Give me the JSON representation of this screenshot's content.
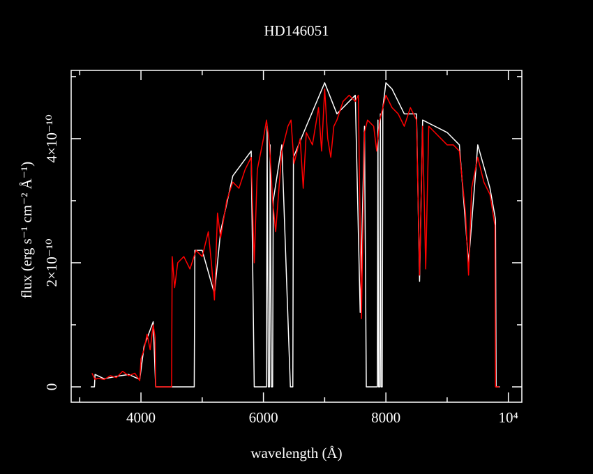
{
  "chart_data": {
    "type": "line",
    "title": "HD146051",
    "x_label": "wavelength (Å)",
    "y_label": "flux (erg s⁻¹ cm⁻² Å⁻¹)",
    "xlim": [
      2860,
      10220
    ],
    "ylim": [
      -2.47e-11,
      5.1e-10
    ],
    "xticks": [
      4000,
      6000,
      8000,
      {
        "value": 10000,
        "label": "10⁴"
      }
    ],
    "xminorticks": [
      3000,
      5000,
      7000,
      9000
    ],
    "yticks": [
      0,
      {
        "value": 2e-10,
        "label": "2×10⁻¹⁰"
      },
      {
        "value": 4e-10,
        "label": "4×10⁻¹⁰"
      }
    ],
    "yminorticks": [
      1e-10,
      3e-10,
      5e-10
    ],
    "series": [
      {
        "color": "#ffffff",
        "x": [
          3180,
          3240,
          3250,
          3400,
          3600,
          3800,
          3980,
          4050,
          4200,
          4240,
          4870,
          4880,
          5000,
          5200,
          5300,
          5500,
          5800,
          5850,
          6050,
          6060,
          6080,
          6100,
          6110,
          6130,
          6150,
          6160,
          6300,
          6440,
          6480,
          6490,
          6700,
          7000,
          7200,
          7500,
          7580,
          7650,
          7680,
          7860,
          7870,
          7880,
          7900,
          7910,
          7920,
          7940,
          7950,
          8000,
          8100,
          8300,
          8500,
          8550,
          8600,
          8800,
          9000,
          9200,
          9350,
          9500,
          9700,
          9790,
          9800,
          9860
        ],
        "values": [
          0,
          0,
          2e-11,
          1.3e-11,
          1.7e-11,
          2e-11,
          1.2e-11,
          6.5e-11,
          1.05e-10,
          0,
          0,
          2.2e-10,
          2.2e-10,
          1.5e-10,
          2.5e-10,
          3.4e-10,
          3.8e-10,
          0,
          0,
          4.2e-10,
          0,
          0,
          3.9e-10,
          0,
          0,
          3e-10,
          3.9e-10,
          0,
          0,
          3.7e-10,
          4.2e-10,
          4.9e-10,
          4.4e-10,
          4.7e-10,
          1.2e-10,
          4.2e-10,
          0,
          0,
          4.3e-10,
          0,
          0,
          4.4e-10,
          0,
          0,
          4.5e-10,
          4.9e-10,
          4.8e-10,
          4.4e-10,
          4.4e-10,
          1.7e-10,
          4.3e-10,
          4.2e-10,
          4.1e-10,
          3.9e-10,
          2e-10,
          3.9e-10,
          3.2e-10,
          2.7e-10,
          0,
          0
        ]
      },
      {
        "color": "#ff0000",
        "x": [
          3200,
          3250,
          3300,
          3400,
          3500,
          3600,
          3700,
          3800,
          3900,
          3980,
          4000,
          4050,
          4100,
          4150,
          4200,
          4230,
          4240,
          4500,
          4510,
          4550,
          4600,
          4700,
          4800,
          4900,
          5000,
          5100,
          5150,
          5200,
          5250,
          5300,
          5400,
          5500,
          5600,
          5700,
          5800,
          5850,
          5900,
          6000,
          6050,
          6100,
          6150,
          6200,
          6300,
          6400,
          6450,
          6500,
          6600,
          6650,
          6700,
          6800,
          6900,
          6950,
          7000,
          7050,
          7100,
          7150,
          7200,
          7300,
          7400,
          7500,
          7550,
          7600,
          7650,
          7700,
          7800,
          7850,
          7900,
          8000,
          8100,
          8200,
          8300,
          8400,
          8500,
          8550,
          8600,
          8650,
          8700,
          8800,
          8900,
          9000,
          9100,
          9200,
          9300,
          9350,
          9400,
          9500,
          9600,
          9700,
          9780,
          9790,
          9850
        ],
        "values": [
          2.2e-11,
          1.2e-11,
          1.4e-11,
          1.2e-11,
          1.8e-11,
          1.5e-11,
          2.5e-11,
          1.8e-11,
          2.2e-11,
          1e-11,
          4.5e-11,
          6e-11,
          8.5e-11,
          6e-11,
          1e-10,
          8e-11,
          0,
          0,
          2.1e-10,
          1.6e-10,
          2e-10,
          2.1e-10,
          1.9e-10,
          2.2e-10,
          2.1e-10,
          2.5e-10,
          2e-10,
          1.4e-10,
          2.8e-10,
          2.4e-10,
          3e-10,
          3.3e-10,
          3.2e-10,
          3.5e-10,
          3.7e-10,
          2e-10,
          3.5e-10,
          4e-10,
          4.3e-10,
          3.9e-10,
          3e-10,
          2.5e-10,
          3.8e-10,
          4.2e-10,
          4.3e-10,
          3.6e-10,
          4e-10,
          3.2e-10,
          4.1e-10,
          3.9e-10,
          4.5e-10,
          3.8e-10,
          4.8e-10,
          4e-10,
          3.7e-10,
          4.2e-10,
          4.3e-10,
          4.6e-10,
          4.7e-10,
          4.6e-10,
          4.7e-10,
          1.1e-10,
          4.1e-10,
          4.3e-10,
          4.2e-10,
          3.8e-10,
          4.3e-10,
          4.7e-10,
          4.5e-10,
          4.4e-10,
          4.2e-10,
          4.5e-10,
          4.3e-10,
          1.8e-10,
          4.2e-10,
          1.9e-10,
          4.2e-10,
          4.1e-10,
          4e-10,
          3.9e-10,
          3.9e-10,
          3.8e-10,
          2.8e-10,
          1.8e-10,
          3.2e-10,
          3.7e-10,
          3.3e-10,
          3.1e-10,
          2.6e-10,
          0,
          0
        ]
      }
    ]
  }
}
